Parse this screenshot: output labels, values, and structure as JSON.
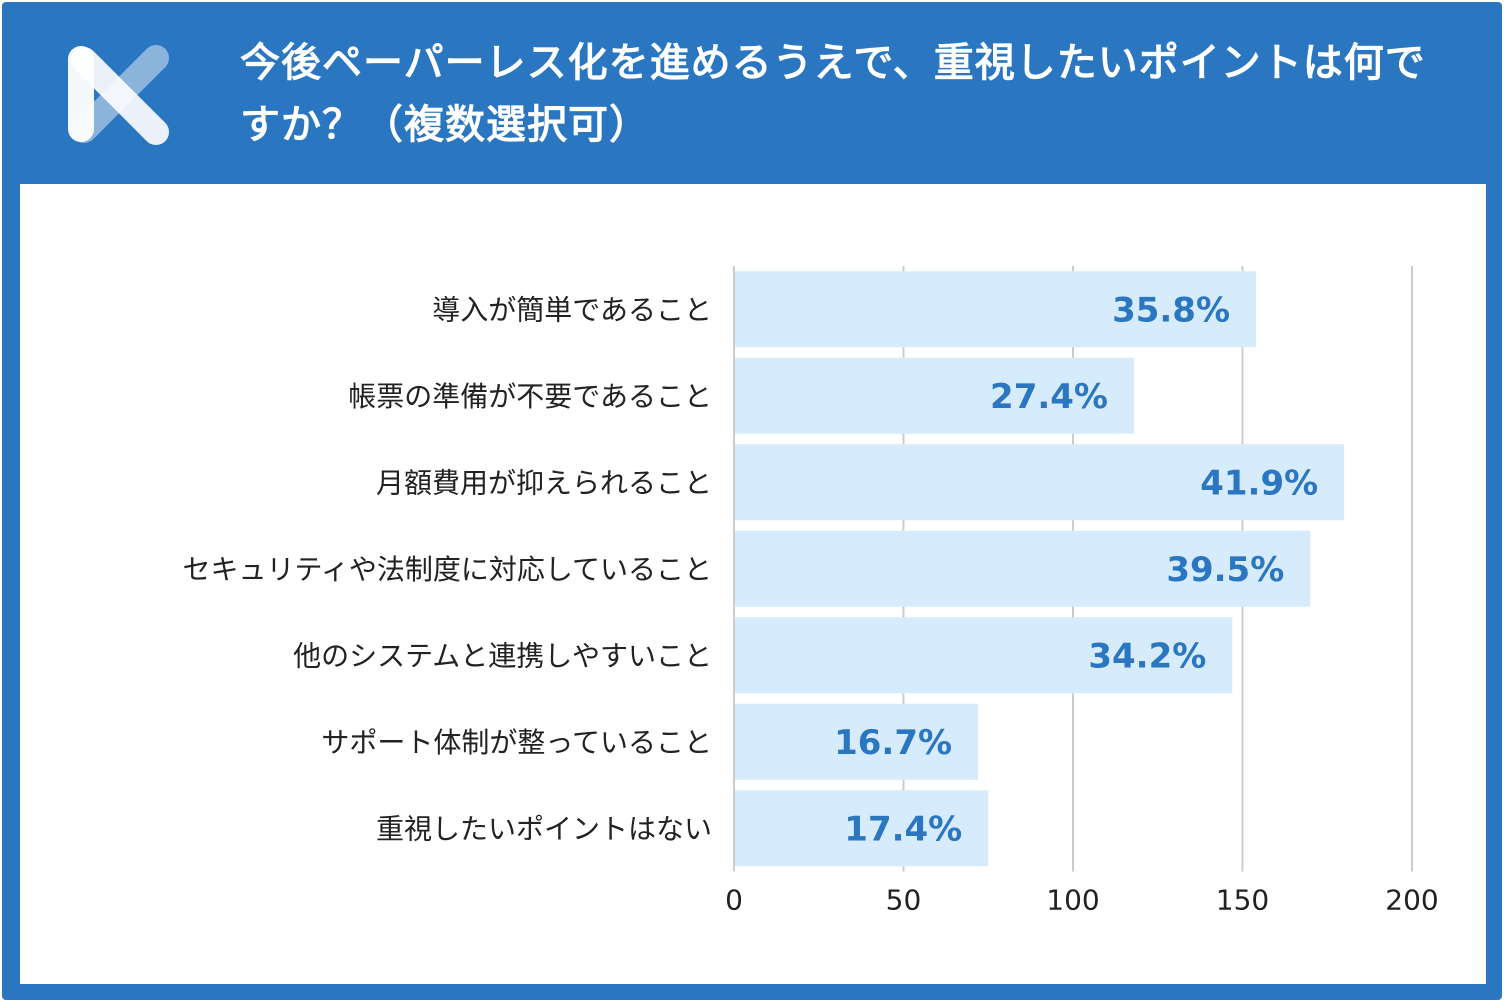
{
  "header": {
    "title": "今後ペーパーレス化を進めるうえで、重視したいポイントは何ですか？（複数選択可）",
    "logo": "x-logo-icon"
  },
  "colors": {
    "header_bg": "#2b76c0",
    "bar_fill": "#d6ebfb",
    "value_text": "#2b76c0",
    "grid": "#cccccc"
  },
  "chart_data": {
    "type": "bar",
    "orientation": "horizontal",
    "title": "今後ペーパーレス化を進めるうえで、重視したいポイントは何ですか？（複数選択可）",
    "categories": [
      "導入が簡単であること",
      "帳票の準備が不要であること",
      "月額費用が抑えられること",
      "セキュリティや法制度に対応していること",
      "他のシステムと連携しやすいこと",
      "サポート体制が整っていること",
      "重視したいポイントはない"
    ],
    "values": [
      154,
      118,
      180,
      170,
      147,
      72,
      75
    ],
    "data_labels": [
      "35.8%",
      "27.4%",
      "41.9%",
      "39.5%",
      "34.2%",
      "16.7%",
      "17.4%"
    ],
    "xlim": [
      0,
      200
    ],
    "xticks": [
      0,
      50,
      100,
      150,
      200
    ],
    "xlabel": "",
    "ylabel": "",
    "grid": true,
    "legend": "none"
  }
}
